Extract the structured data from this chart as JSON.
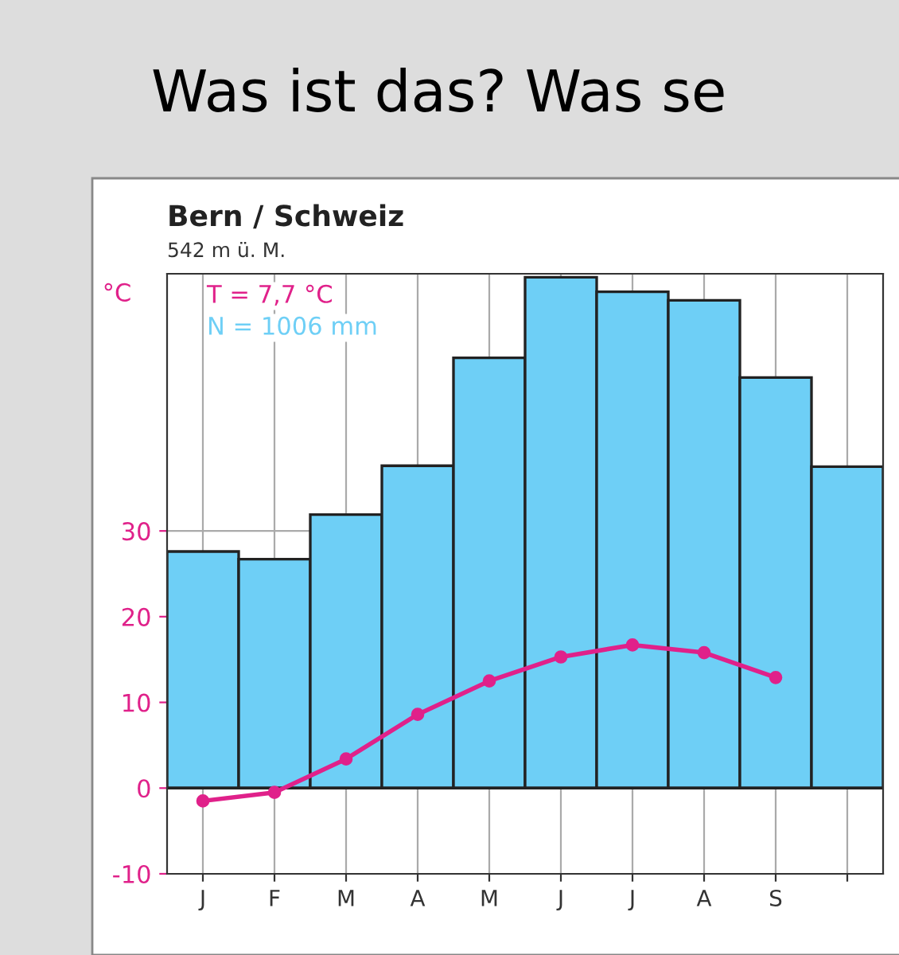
{
  "chart_data": {
    "type": "bar",
    "title": "Was ist das? Was se",
    "ylabel": "°C",
    "annotations": [
      "Bern / Schweiz",
      "542 m ü. M.",
      "T = 7,7 °C",
      "N = 1006 mm"
    ],
    "categories": [
      "J",
      "F",
      "M",
      "A",
      "M",
      "J",
      "J",
      "A",
      "S",
      null
    ],
    "series": [
      {
        "color": "#6ecff6",
        "values": [
          27.6,
          26.7,
          31.9,
          37.6,
          50.2,
          59.6,
          57.9,
          56.9,
          47.9,
          37.5
        ]
      },
      {
        "type": "line",
        "color": "#e0218a",
        "marker": "circle",
        "values": [
          -1.5,
          -0.5,
          3.4,
          8.6,
          12.5,
          15.3,
          16.7,
          15.8,
          12.9,
          null
        ]
      }
    ],
    "ylim": [
      -10,
      60
    ],
    "yticks": [
      -10,
      0,
      10,
      20,
      30
    ],
    "grid": true
  }
}
